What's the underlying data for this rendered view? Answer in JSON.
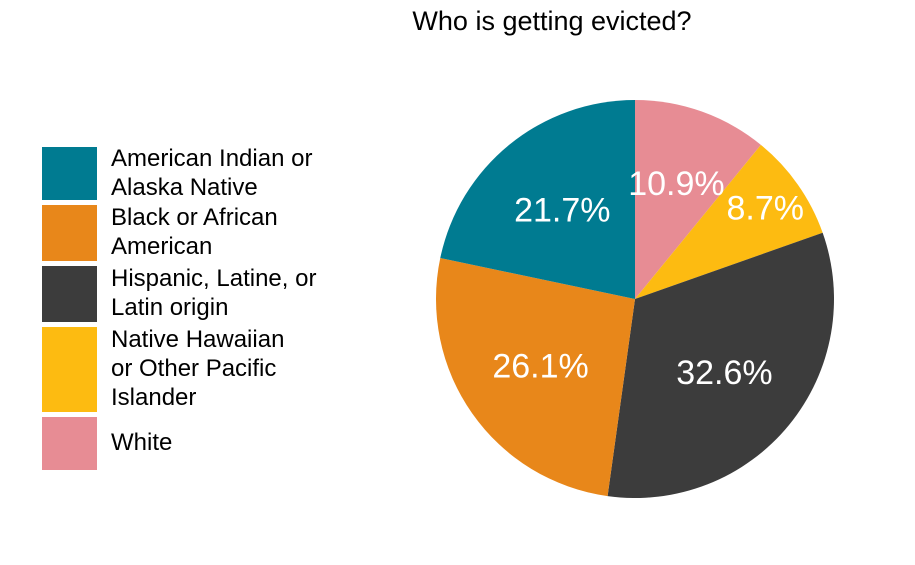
{
  "chart_data": {
    "type": "pie",
    "title": "Who is getting evicted?",
    "categories": [
      "American Indian or\nAlaska Native",
      "Black or African\nAmerican",
      "Hispanic, Latine, or\nLatin origin",
      "Native Hawaiian\nor Other Pacific\nIslander",
      "White"
    ],
    "values": [
      21.7,
      26.1,
      32.6,
      8.7,
      10.9
    ],
    "value_labels": [
      "21.7%",
      "26.1%",
      "32.6%",
      "8.7%",
      "10.9%"
    ],
    "colors": [
      "#007B91",
      "#E8871A",
      "#3C3C3C",
      "#FDBB11",
      "#E78C94"
    ],
    "legend_position": "left",
    "slice_order": "clockwise from top: White, Native Hawaiian or Other Pacific Islander, Hispanic, Latine, or Latin origin, Black or African American, American Indian or Alaska Native"
  }
}
